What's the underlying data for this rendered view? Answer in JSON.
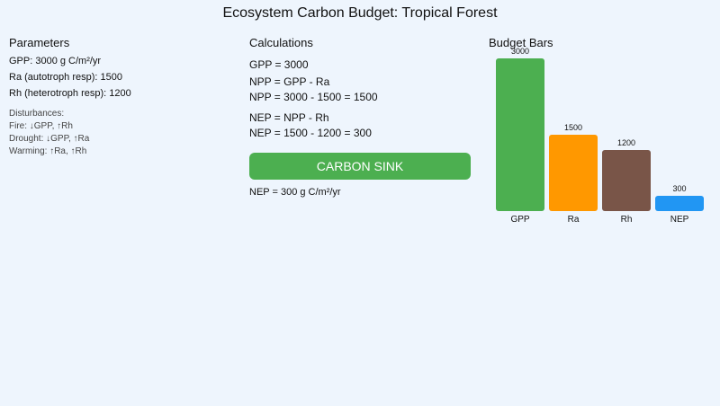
{
  "title": "Ecosystem Carbon Budget: Tropical Forest",
  "parameters": {
    "heading": "Parameters",
    "gpp": "GPP: 3000 g C/m²/yr",
    "ra": "Ra (autotroph resp): 1500",
    "rh": "Rh (heterotroph resp): 1200",
    "disturbances_heading": "Disturbances:",
    "fire": "Fire: ↓GPP, ↑Rh",
    "drought": "Drought: ↓GPP, ↑Ra",
    "warming": "Warming: ↑Ra, ↑Rh"
  },
  "calculations": {
    "heading": "Calculations",
    "gpp_line": "GPP = 3000",
    "npp_formula": "NPP = GPP - Ra",
    "npp_calc": "NPP = 3000 - 1500 = 1500",
    "nep_formula": "NEP = NPP - Rh",
    "nep_calc": "NEP = 1500 - 1200 = 300",
    "sink_label": "CARBON SINK",
    "nep_result": "NEP = 300 g C/m²/yr"
  },
  "chart_data": {
    "type": "bar",
    "title": "Budget Bars",
    "categories": [
      "GPP",
      "Ra",
      "Rh",
      "NEP"
    ],
    "values": [
      3000,
      1500,
      1200,
      300
    ],
    "value_labels": [
      "3000",
      "1500",
      "1200",
      "300"
    ],
    "colors": [
      "#4caf50",
      "#ff9800",
      "#795548",
      "#2196f3"
    ],
    "ylim": [
      0,
      3000
    ]
  }
}
